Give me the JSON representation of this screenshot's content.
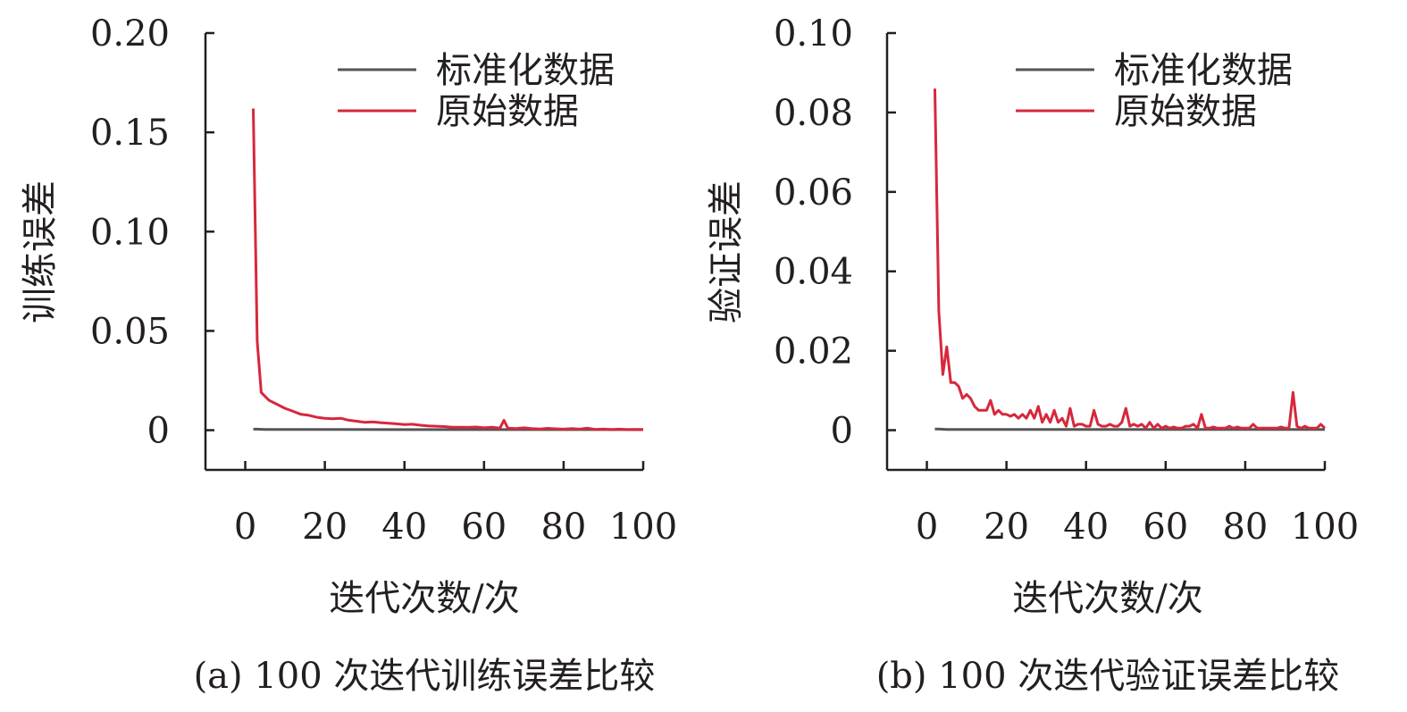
{
  "chart_data": [
    {
      "type": "line",
      "caption": "(a) 100 次迭代训练误差比较",
      "xlabel": "迭代次数/次",
      "ylabel": "训练误差",
      "xlim": [
        -10,
        100
      ],
      "ylim": [
        -0.02,
        0.2
      ],
      "xticks": [
        0,
        20,
        40,
        60,
        80,
        100
      ],
      "yticks": [
        0,
        0.05,
        0.1,
        0.15,
        0.2
      ],
      "ytick_labels": [
        "0",
        "0.05",
        "0.10",
        "0.15",
        "0.20"
      ],
      "xtick_labels": [
        "0",
        "20",
        "40",
        "60",
        "80",
        "100"
      ],
      "legend": {
        "position": "top-right"
      },
      "series": [
        {
          "name": "标准化数据",
          "color": "#555555",
          "x": [
            2,
            3,
            5,
            10,
            20,
            40,
            60,
            80,
            100
          ],
          "y": [
            0.0005,
            0.0005,
            0.0004,
            0.0004,
            0.0004,
            0.0003,
            0.0003,
            0.0003,
            0.0003
          ]
        },
        {
          "name": "原始数据",
          "color": "#d6283c",
          "x": [
            2,
            3,
            4,
            5,
            6,
            8,
            10,
            12,
            14,
            16,
            18,
            20,
            22,
            24,
            26,
            28,
            30,
            32,
            34,
            36,
            38,
            40,
            42,
            44,
            46,
            48,
            50,
            52,
            54,
            56,
            58,
            60,
            62,
            64,
            65,
            66,
            68,
            70,
            72,
            74,
            76,
            78,
            80,
            82,
            84,
            86,
            88,
            90,
            92,
            94,
            96,
            98,
            100
          ],
          "y": [
            0.162,
            0.045,
            0.019,
            0.017,
            0.015,
            0.013,
            0.011,
            0.0095,
            0.008,
            0.0075,
            0.0065,
            0.006,
            0.0058,
            0.006,
            0.005,
            0.0045,
            0.004,
            0.0042,
            0.0038,
            0.0035,
            0.0032,
            0.0028,
            0.003,
            0.0025,
            0.0022,
            0.002,
            0.0018,
            0.0015,
            0.0015,
            0.0014,
            0.0016,
            0.0012,
            0.0015,
            0.001,
            0.005,
            0.001,
            0.0008,
            0.0012,
            0.0008,
            0.0006,
            0.0009,
            0.0007,
            0.0005,
            0.0008,
            0.0005,
            0.001,
            0.0004,
            0.0006,
            0.0003,
            0.0005,
            0.0003,
            0.0004,
            0.0003
          ]
        }
      ]
    },
    {
      "type": "line",
      "caption": "(b) 100 次迭代验证误差比较",
      "xlabel": "迭代次数/次",
      "ylabel": "验证误差",
      "xlim": [
        -10,
        100
      ],
      "ylim": [
        -0.01,
        0.1
      ],
      "xticks": [
        0,
        20,
        40,
        60,
        80,
        100
      ],
      "yticks": [
        0,
        0.02,
        0.04,
        0.06,
        0.08,
        0.1
      ],
      "ytick_labels": [
        "0",
        "0.02",
        "0.04",
        "0.06",
        "0.08",
        "0.10"
      ],
      "xtick_labels": [
        "0",
        "20",
        "40",
        "60",
        "80",
        "100"
      ],
      "legend": {
        "position": "top-right"
      },
      "series": [
        {
          "name": "标准化数据",
          "color": "#555555",
          "x": [
            2,
            3,
            5,
            10,
            20,
            40,
            60,
            80,
            100
          ],
          "y": [
            0.0003,
            0.0003,
            0.0002,
            0.0002,
            0.0002,
            0.0002,
            0.0002,
            0.0002,
            0.0002
          ]
        },
        {
          "name": "原始数据",
          "color": "#d6283c",
          "x": [
            2,
            3,
            4,
            5,
            6,
            7,
            8,
            9,
            10,
            11,
            12,
            13,
            14,
            15,
            16,
            17,
            18,
            19,
            20,
            21,
            22,
            23,
            24,
            25,
            26,
            27,
            28,
            29,
            30,
            31,
            32,
            33,
            34,
            35,
            36,
            37,
            38,
            39,
            40,
            41,
            42,
            43,
            44,
            45,
            46,
            47,
            48,
            49,
            50,
            51,
            52,
            53,
            54,
            55,
            56,
            57,
            58,
            59,
            60,
            61,
            62,
            63,
            64,
            65,
            66,
            67,
            68,
            69,
            70,
            71,
            72,
            73,
            74,
            75,
            76,
            77,
            78,
            79,
            80,
            81,
            82,
            83,
            84,
            85,
            86,
            87,
            88,
            89,
            90,
            91,
            92,
            93,
            94,
            95,
            96,
            97,
            98,
            99,
            100
          ],
          "y": [
            0.086,
            0.03,
            0.014,
            0.021,
            0.012,
            0.012,
            0.011,
            0.008,
            0.009,
            0.008,
            0.006,
            0.005,
            0.005,
            0.005,
            0.0075,
            0.004,
            0.005,
            0.004,
            0.004,
            0.0035,
            0.004,
            0.003,
            0.004,
            0.003,
            0.005,
            0.003,
            0.006,
            0.002,
            0.004,
            0.002,
            0.005,
            0.002,
            0.003,
            0.001,
            0.0055,
            0.001,
            0.0015,
            0.0015,
            0.001,
            0.001,
            0.005,
            0.0015,
            0.001,
            0.001,
            0.0015,
            0.001,
            0.001,
            0.002,
            0.0055,
            0.001,
            0.0015,
            0.001,
            0.0015,
            0.0005,
            0.002,
            0.0005,
            0.0015,
            0.0005,
            0.001,
            0.0005,
            0.0008,
            0.0005,
            0.0005,
            0.001,
            0.001,
            0.0015,
            0.0005,
            0.004,
            0.0005,
            0.0005,
            0.0008,
            0.0005,
            0.0005,
            0.0005,
            0.001,
            0.0005,
            0.0008,
            0.0005,
            0.0005,
            0.0005,
            0.0015,
            0.0005,
            0.0005,
            0.0005,
            0.0005,
            0.0005,
            0.0005,
            0.0008,
            0.0005,
            0.0005,
            0.0095,
            0.001,
            0.0005,
            0.001,
            0.0005,
            0.0005,
            0.0005,
            0.0015,
            0.0005
          ]
        }
      ]
    }
  ]
}
